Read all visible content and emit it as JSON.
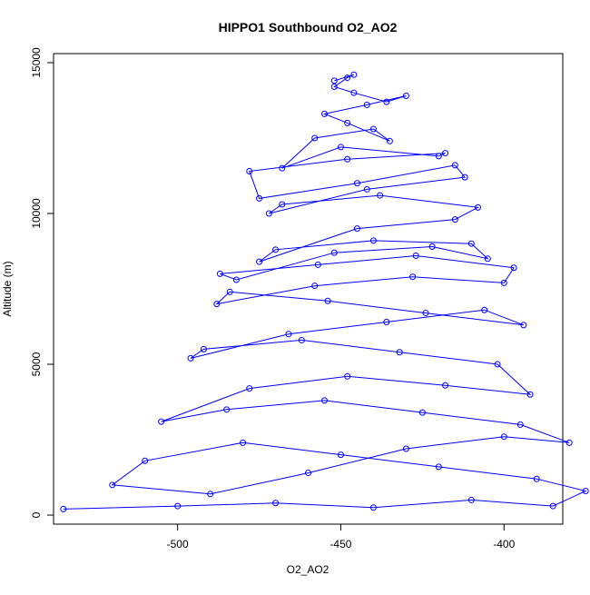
{
  "chart_data": {
    "type": "scatter",
    "title": "HIPPO1 Southbound O2_AO2",
    "xlabel": "O2_AO2",
    "ylabel": "Altitude (m)",
    "xlim": [
      -538,
      -382
    ],
    "ylim": [
      -300,
      15300
    ],
    "x_ticks": [
      -500,
      -450,
      -400
    ],
    "x_tick_labels": [
      "-500",
      "-450",
      "-400"
    ],
    "y_ticks": [
      0,
      5000,
      10000,
      15000
    ],
    "y_tick_labels": [
      "0",
      "5000",
      "10000",
      "15000"
    ],
    "grid": false,
    "legend": "none",
    "marker": "open-circle-connected-by-lines",
    "series": [
      {
        "color": "#0000ff",
        "x": [
          -535,
          -500,
          -470,
          -440,
          -410,
          -385,
          -375,
          -390,
          -420,
          -450,
          -480,
          -510,
          -520,
          -490,
          -460,
          -430,
          -400,
          -380,
          -395,
          -425,
          -455,
          -485,
          -505,
          -478,
          -448,
          -418,
          -392,
          -402,
          -432,
          -462,
          -492,
          -496,
          -466,
          -436,
          -406,
          -394,
          -424,
          -454,
          -484,
          -488,
          -458,
          -428,
          -400,
          -397,
          -427,
          -457,
          -487,
          -482,
          -452,
          -422,
          -405,
          -410,
          -440,
          -470,
          -475,
          -445,
          -415,
          -408,
          -438,
          -468,
          -472,
          -442,
          -412,
          -415,
          -445,
          -475,
          -478,
          -448,
          -418,
          -420,
          -450,
          -468,
          -458,
          -440,
          -435,
          -448,
          -455,
          -442,
          -430,
          -436,
          -446,
          -452,
          -448,
          -446,
          -452
        ],
        "y": [
          200,
          300,
          400,
          250,
          500,
          300,
          800,
          1200,
          1600,
          2000,
          2400,
          1800,
          1000,
          700,
          1400,
          2200,
          2600,
          2400,
          3000,
          3400,
          3800,
          3500,
          3100,
          4200,
          4600,
          4300,
          4000,
          5000,
          5400,
          5800,
          5500,
          5200,
          6000,
          6400,
          6800,
          6300,
          6700,
          7100,
          7400,
          7000,
          7600,
          7900,
          7700,
          8200,
          8600,
          8300,
          8000,
          7800,
          8700,
          8900,
          8500,
          9000,
          9100,
          8800,
          8400,
          9500,
          9800,
          10200,
          10600,
          10300,
          10000,
          10800,
          11200,
          11600,
          11000,
          10500,
          11400,
          11800,
          12000,
          11900,
          12200,
          11500,
          12500,
          12800,
          12400,
          13000,
          13300,
          13600,
          13900,
          13700,
          14000,
          14200,
          14500,
          14600,
          14400
        ]
      }
    ]
  }
}
